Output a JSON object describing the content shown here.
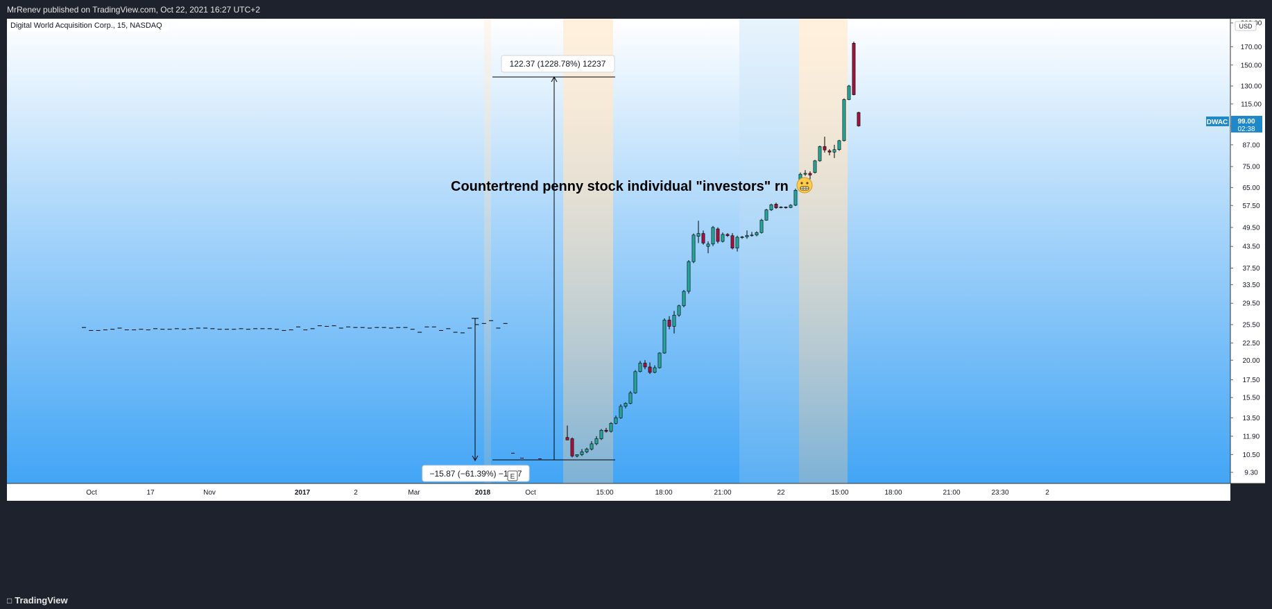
{
  "header": {
    "publish_line": "MrRenev published on TradingView.com, Oct 22, 2021 16:27 UTC+2"
  },
  "footer": {
    "brand": "TradingView",
    "brand_icon": "tradingview-logo-icon"
  },
  "colors": {
    "up": "#26a69a",
    "down": "#a4133c",
    "bg_top": "#ffffff",
    "bg_bottom": "#42a5f5",
    "axis_bg": "#ffffff",
    "tag": "#1e88c9"
  },
  "chart_data": {
    "type": "candlestick",
    "title": "Digital World Acquisition Corp., 15, NASDAQ",
    "ticker_tag": {
      "symbol": "DWAC",
      "price": "99.00",
      "countdown": "02:38"
    },
    "currency": "USD",
    "y_scale": "log",
    "ylim": [
      8.5,
      200
    ],
    "y_ticks": [
      "200.00",
      "170.00",
      "150.00",
      "130.00",
      "115.00",
      "99.00",
      "87.00",
      "75.00",
      "65.00",
      "57.50",
      "49.50",
      "43.50",
      "37.50",
      "33.50",
      "29.50",
      "25.50",
      "22.50",
      "20.00",
      "17.50",
      "15.50",
      "13.50",
      "11.90",
      "10.50",
      "9.30"
    ],
    "x_ticks": [
      {
        "label": "Oct",
        "bold": false
      },
      {
        "label": "17",
        "bold": false
      },
      {
        "label": "Nov",
        "bold": false
      },
      {
        "label": "2017",
        "bold": true
      },
      {
        "label": "2",
        "bold": false
      },
      {
        "label": "Mar",
        "bold": false
      },
      {
        "label": "2018",
        "bold": true
      },
      {
        "label": "Oct",
        "bold": false
      },
      {
        "label": "15:00",
        "bold": false
      },
      {
        "label": "18:00",
        "bold": false
      },
      {
        "label": "21:00",
        "bold": false
      },
      {
        "label": "22",
        "bold": false
      },
      {
        "label": "15:00",
        "bold": false
      },
      {
        "label": "18:00",
        "bold": false
      },
      {
        "label": "21:00",
        "bold": false
      },
      {
        "label": "23:30",
        "bold": false
      },
      {
        "label": "2",
        "bold": false
      }
    ],
    "flat_period_price": 24.7,
    "candles": [
      {
        "o": 11.8,
        "h": 12.8,
        "l": 11.7,
        "c": 11.6
      },
      {
        "o": 11.7,
        "h": 11.8,
        "l": 10.3,
        "c": 10.4
      },
      {
        "o": 10.4,
        "h": 10.5,
        "l": 10.3,
        "c": 10.5
      },
      {
        "o": 10.5,
        "h": 10.9,
        "l": 10.4,
        "c": 10.7
      },
      {
        "o": 10.7,
        "h": 11.0,
        "l": 10.6,
        "c": 10.9
      },
      {
        "o": 10.9,
        "h": 11.5,
        "l": 10.8,
        "c": 11.3
      },
      {
        "o": 11.3,
        "h": 11.9,
        "l": 11.2,
        "c": 11.7
      },
      {
        "o": 11.7,
        "h": 12.5,
        "l": 11.6,
        "c": 12.4
      },
      {
        "o": 12.4,
        "h": 12.6,
        "l": 12.2,
        "c": 12.3
      },
      {
        "o": 12.3,
        "h": 13.1,
        "l": 12.2,
        "c": 13.0
      },
      {
        "o": 13.0,
        "h": 13.7,
        "l": 12.9,
        "c": 13.5
      },
      {
        "o": 13.5,
        "h": 14.8,
        "l": 13.4,
        "c": 14.6
      },
      {
        "o": 14.6,
        "h": 15.0,
        "l": 14.4,
        "c": 14.9
      },
      {
        "o": 14.9,
        "h": 16.2,
        "l": 14.8,
        "c": 16.0
      },
      {
        "o": 16.0,
        "h": 18.7,
        "l": 15.9,
        "c": 18.5
      },
      {
        "o": 18.5,
        "h": 19.9,
        "l": 18.4,
        "c": 19.6
      },
      {
        "o": 19.6,
        "h": 20.0,
        "l": 18.8,
        "c": 19.1
      },
      {
        "o": 19.1,
        "h": 19.7,
        "l": 18.2,
        "c": 18.4
      },
      {
        "o": 18.4,
        "h": 19.3,
        "l": 18.3,
        "c": 19.0
      },
      {
        "o": 19.0,
        "h": 21.1,
        "l": 18.9,
        "c": 21.0
      },
      {
        "o": 21.0,
        "h": 26.6,
        "l": 20.9,
        "c": 26.3
      },
      {
        "o": 26.3,
        "h": 27.0,
        "l": 24.7,
        "c": 25.2
      },
      {
        "o": 25.2,
        "h": 28.0,
        "l": 24.0,
        "c": 27.2
      },
      {
        "o": 27.2,
        "h": 29.2,
        "l": 26.9,
        "c": 29.0
      },
      {
        "o": 29.0,
        "h": 32.3,
        "l": 28.7,
        "c": 32.0
      },
      {
        "o": 32.0,
        "h": 39.6,
        "l": 31.5,
        "c": 39.2
      },
      {
        "o": 39.2,
        "h": 47.5,
        "l": 38.8,
        "c": 47.0
      },
      {
        "o": 46.6,
        "h": 51.8,
        "l": 44.5,
        "c": 47.5
      },
      {
        "o": 47.5,
        "h": 48.5,
        "l": 44.0,
        "c": 44.5
      },
      {
        "o": 43.5,
        "h": 45.0,
        "l": 41.5,
        "c": 44.2
      },
      {
        "o": 44.2,
        "h": 50.0,
        "l": 43.6,
        "c": 49.5
      },
      {
        "o": 49.0,
        "h": 49.5,
        "l": 44.4,
        "c": 45.0
      },
      {
        "o": 45.0,
        "h": 47.8,
        "l": 44.7,
        "c": 47.2
      },
      {
        "o": 47.2,
        "h": 47.6,
        "l": 46.4,
        "c": 46.8
      },
      {
        "o": 46.8,
        "h": 47.6,
        "l": 42.6,
        "c": 43.0
      },
      {
        "o": 43.0,
        "h": 46.8,
        "l": 42.0,
        "c": 46.3
      },
      {
        "o": 46.3,
        "h": 46.7,
        "l": 45.8,
        "c": 46.4
      },
      {
        "o": 46.4,
        "h": 48.5,
        "l": 45.8,
        "c": 46.9
      },
      {
        "o": 46.9,
        "h": 48.0,
        "l": 46.5,
        "c": 47.0
      },
      {
        "o": 47.0,
        "h": 48.2,
        "l": 46.6,
        "c": 47.8
      },
      {
        "o": 47.8,
        "h": 52.5,
        "l": 47.5,
        "c": 52.0
      },
      {
        "o": 52.0,
        "h": 56.2,
        "l": 51.8,
        "c": 55.8
      },
      {
        "o": 55.8,
        "h": 58.2,
        "l": 55.4,
        "c": 57.8
      },
      {
        "o": 58.0,
        "h": 58.6,
        "l": 56.2,
        "c": 56.6
      },
      {
        "o": 56.6,
        "h": 57.2,
        "l": 56.4,
        "c": 56.9
      },
      {
        "o": 56.9,
        "h": 57.1,
        "l": 56.3,
        "c": 56.7
      },
      {
        "o": 56.7,
        "h": 58.0,
        "l": 56.5,
        "c": 57.6
      },
      {
        "o": 57.6,
        "h": 64.5,
        "l": 57.3,
        "c": 63.8
      },
      {
        "o": 68.5,
        "h": 72.0,
        "l": 68.2,
        "c": 71.2
      },
      {
        "o": 71.2,
        "h": 73.2,
        "l": 70.4,
        "c": 71.6
      },
      {
        "o": 71.6,
        "h": 72.6,
        "l": 68.8,
        "c": 70.8
      },
      {
        "o": 72.0,
        "h": 78.5,
        "l": 71.5,
        "c": 78.0
      },
      {
        "o": 78.0,
        "h": 86.5,
        "l": 77.5,
        "c": 86.0
      },
      {
        "o": 86.0,
        "h": 92.0,
        "l": 82.5,
        "c": 84.0
      },
      {
        "o": 83.5,
        "h": 84.5,
        "l": 81.0,
        "c": 82.8
      },
      {
        "o": 82.8,
        "h": 87.0,
        "l": 79.5,
        "c": 84.2
      },
      {
        "o": 84.2,
        "h": 90.0,
        "l": 83.5,
        "c": 89.5
      },
      {
        "o": 89.5,
        "h": 119.5,
        "l": 89.0,
        "c": 118.5
      },
      {
        "o": 118.5,
        "h": 131.0,
        "l": 118.0,
        "c": 130.0
      },
      {
        "o": 174.0,
        "h": 176.0,
        "l": 122.0,
        "c": 122.5
      },
      {
        "o": 108.5,
        "h": 109.0,
        "l": 98.5,
        "c": 99.0
      }
    ],
    "annotations": [
      {
        "id": "measure-up",
        "text": "122.37 (1228.78%) 12237"
      },
      {
        "id": "measure-down",
        "text": "−15.87 (−61.39%) −1587"
      },
      {
        "id": "main-caption",
        "text": "Countertrend penny stock individual \"investors\" rn"
      },
      {
        "id": "earnings-marker",
        "text": "E"
      }
    ],
    "caption_emoji": "grimacing-face-icon"
  }
}
